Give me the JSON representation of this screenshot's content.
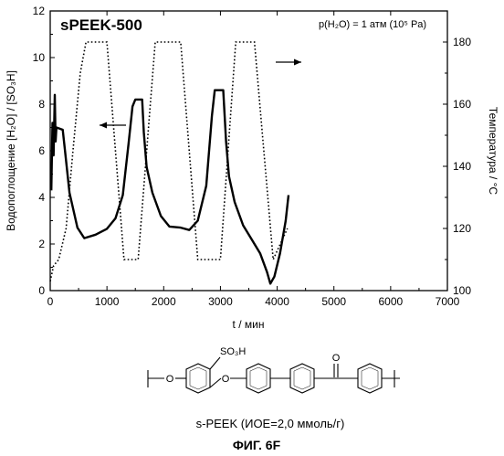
{
  "chart_data": {
    "type": "line",
    "title": "sPEEK-500",
    "annotation": "p(H₂O) = 1 атм (10⁵ Pa)",
    "xlabel": "t / мин",
    "ylabel_left": "Водопоглощение [H₂O] / [SO₃H]",
    "ylabel_right": "Температура / °C",
    "xlim": [
      0,
      7000
    ],
    "ylim_left": [
      0,
      12
    ],
    "ylim_right": [
      100,
      190
    ],
    "x_ticks": [
      "0",
      "1000",
      "2000",
      "3000",
      "4000",
      "5000",
      "6000",
      "7000"
    ],
    "y_left_ticks": [
      "0",
      "2",
      "4",
      "6",
      "8",
      "10",
      "12"
    ],
    "y_right_ticks": [
      "100",
      "120",
      "140",
      "160",
      "180"
    ],
    "grid": false,
    "legend": "arrows",
    "series": [
      {
        "axis": "left",
        "style": "solid",
        "points": [
          [
            20,
            4.3
          ],
          [
            40,
            7.2
          ],
          [
            60,
            5.8
          ],
          [
            80,
            8.4
          ],
          [
            95,
            6.4
          ],
          [
            110,
            7.0
          ],
          [
            220,
            6.9
          ],
          [
            260,
            6.0
          ],
          [
            340,
            4.2
          ],
          [
            480,
            2.7
          ],
          [
            600,
            2.25
          ],
          [
            800,
            2.4
          ],
          [
            1000,
            2.65
          ],
          [
            1150,
            3.1
          ],
          [
            1280,
            4.1
          ],
          [
            1380,
            6.3
          ],
          [
            1450,
            7.9
          ],
          [
            1500,
            8.2
          ],
          [
            1620,
            8.2
          ],
          [
            1650,
            6.8
          ],
          [
            1700,
            5.3
          ],
          [
            1800,
            4.2
          ],
          [
            1950,
            3.2
          ],
          [
            2100,
            2.75
          ],
          [
            2300,
            2.7
          ],
          [
            2450,
            2.6
          ],
          [
            2600,
            3.0
          ],
          [
            2750,
            4.5
          ],
          [
            2850,
            7.5
          ],
          [
            2900,
            8.6
          ],
          [
            3050,
            8.6
          ],
          [
            3100,
            6.4
          ],
          [
            3150,
            4.9
          ],
          [
            3250,
            3.8
          ],
          [
            3400,
            2.8
          ],
          [
            3550,
            2.2
          ],
          [
            3700,
            1.6
          ],
          [
            3820,
            0.8
          ],
          [
            3880,
            0.3
          ],
          [
            3950,
            0.6
          ],
          [
            4050,
            1.6
          ],
          [
            4150,
            3.0
          ],
          [
            4200,
            4.1
          ]
        ]
      },
      {
        "axis": "right",
        "style": "dotted",
        "points": [
          [
            0,
            103
          ],
          [
            60,
            108
          ],
          [
            150,
            110
          ],
          [
            280,
            120
          ],
          [
            400,
            145
          ],
          [
            530,
            170
          ],
          [
            630,
            180
          ],
          [
            1000,
            180
          ],
          [
            1300,
            110
          ],
          [
            1550,
            110
          ],
          [
            1850,
            180
          ],
          [
            2300,
            180
          ],
          [
            2600,
            110
          ],
          [
            3000,
            110
          ],
          [
            3270,
            180
          ],
          [
            3600,
            180
          ],
          [
            3930,
            110
          ],
          [
            4180,
            120
          ]
        ]
      }
    ]
  },
  "structure": {
    "substituent": "SO₃H",
    "bridge_atom": "O",
    "carbonyl_atom": "O",
    "end_mark": "O"
  },
  "caption": "s-PEEK  (ИОЕ=2,0 ммоль/г)",
  "figure_label": "ФИГ. 6F"
}
